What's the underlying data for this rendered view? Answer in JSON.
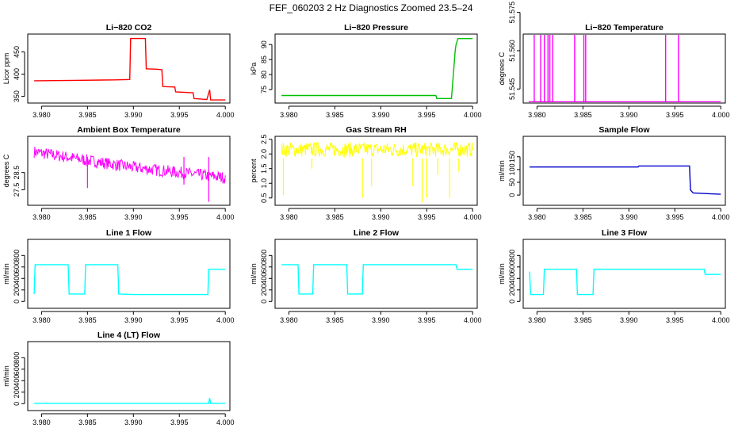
{
  "figure_title": "FEF_060203  2 Hz Diagnostics Zoomed 23.5–24",
  "chart_data": [
    {
      "type": "line",
      "title": "Li−820 CO2",
      "ylabel": "Licor ppm",
      "color": "#ff0000",
      "xlim": [
        3.9785,
        4.0005
      ],
      "ylim": [
        335,
        490
      ],
      "xticks": [
        "3.980",
        "3.985",
        "3.990",
        "3.995",
        "4.000"
      ],
      "yticks": [
        "350",
        "400",
        "450"
      ],
      "series": [
        {
          "points": [
            [
              3.9792,
              385
            ],
            [
              3.9835,
              386
            ],
            [
              3.988,
              387
            ],
            [
              3.9896,
              388
            ],
            [
              3.9897,
              480
            ],
            [
              3.9913,
              480
            ],
            [
              3.9914,
              412
            ],
            [
              3.9925,
              411
            ],
            [
              3.9931,
              410
            ],
            [
              3.9932,
              372
            ],
            [
              3.9945,
              371
            ],
            [
              3.9946,
              360
            ],
            [
              3.9965,
              358
            ],
            [
              3.9966,
              345
            ],
            [
              3.998,
              343
            ],
            [
              3.9983,
              365
            ],
            [
              3.9984,
              342
            ],
            [
              4.0,
              342
            ]
          ]
        }
      ]
    },
    {
      "type": "line",
      "title": "Li−820 Pressure",
      "ylabel": "kPa",
      "color": "#00c000",
      "xlim": [
        3.9785,
        4.0005
      ],
      "ylim": [
        70.5,
        93.5
      ],
      "xticks": [
        "3.980",
        "3.985",
        "3.990",
        "3.995",
        "4.000"
      ],
      "yticks": [
        "75",
        "80",
        "85",
        "90"
      ],
      "series": [
        {
          "points": [
            [
              3.9792,
              73
            ],
            [
              3.996,
              73
            ],
            [
              3.9961,
              72
            ],
            [
              3.9977,
              72
            ],
            [
              3.9979,
              80
            ],
            [
              3.9981,
              88
            ],
            [
              3.9982,
              90
            ],
            [
              3.9984,
              92
            ],
            [
              4.0,
              92
            ]
          ]
        }
      ]
    },
    {
      "type": "line",
      "title": "Li−820 Temperature",
      "ylabel": "degrees C",
      "color": "#ff00ff",
      "xlim": [
        3.9785,
        4.0005
      ],
      "ylim": [
        51.5395,
        51.5665
      ],
      "xticks": [
        "3.980",
        "3.985",
        "3.990",
        "3.995",
        "4.000"
      ],
      "yticks": [
        "51.545",
        "51.560",
        "51.575"
      ],
      "spike_top": 51.5665,
      "baseline": 51.54,
      "spikes_x": [
        3.9797,
        3.9804,
        3.9808,
        3.9812,
        3.9814,
        3.9817,
        3.9841,
        3.9851,
        3.9853,
        3.994,
        3.9954
      ]
    },
    {
      "type": "line",
      "title": "Ambient Box Temperature",
      "ylabel": "degrees C",
      "color": "#ff00ff",
      "xlim": [
        3.9785,
        4.0005
      ],
      "ylim": [
        26.6,
        30.6
      ],
      "xticks": [
        "3.980",
        "3.985",
        "3.990",
        "3.995",
        "4.000"
      ],
      "yticks": [
        "27.5",
        "28.5"
      ],
      "trend": [
        [
          3.9792,
          29.7
        ],
        [
          3.985,
          29.2
        ],
        [
          3.99,
          28.8
        ],
        [
          3.995,
          28.5
        ],
        [
          4.0,
          28.2
        ]
      ],
      "noise": 0.35,
      "outliers": [
        [
          3.985,
          27.6
        ],
        [
          3.9982,
          26.8
        ],
        [
          3.9955,
          27.8
        ]
      ]
    },
    {
      "type": "line",
      "title": "Gas Stream RH",
      "ylabel": "percent",
      "color": "#ffff00",
      "xlim": [
        3.9785,
        4.0005
      ],
      "ylim": [
        0.25,
        2.6
      ],
      "xticks": [
        "3.980",
        "3.985",
        "3.990",
        "3.995",
        "4.000"
      ],
      "yticks": [
        "0.5",
        "1.0",
        "1.5",
        "2.0",
        "2.5"
      ],
      "trend": [
        [
          3.9792,
          2.15
        ],
        [
          4.0,
          2.15
        ]
      ],
      "noise": 0.25,
      "outliers": [
        [
          3.9794,
          0.6
        ],
        [
          3.9825,
          1.5
        ],
        [
          3.988,
          0.5
        ],
        [
          3.989,
          0.9
        ],
        [
          3.9935,
          0.9
        ],
        [
          3.9945,
          0.35
        ],
        [
          3.995,
          0.5
        ],
        [
          3.9962,
          1.3
        ],
        [
          3.9975,
          0.5
        ],
        [
          3.9985,
          1.4
        ]
      ]
    },
    {
      "type": "line",
      "title": "Sample Flow",
      "ylabel": "ml/min",
      "color": "#0000cc",
      "xlim": [
        3.9785,
        4.0005
      ],
      "ylim": [
        -40,
        230
      ],
      "xticks": [
        "3.980",
        "3.985",
        "3.990",
        "3.995",
        "4.000"
      ],
      "yticks": [
        "0",
        "50",
        "100",
        "150"
      ],
      "series": [
        {
          "points": [
            [
              3.9792,
              110
            ],
            [
              3.991,
              110
            ],
            [
              3.9911,
              114
            ],
            [
              3.9966,
              114
            ],
            [
              3.9967,
              20
            ],
            [
              3.997,
              8
            ],
            [
              4.0,
              3
            ]
          ]
        }
      ]
    },
    {
      "type": "line",
      "title": "Line 1 Flow",
      "ylabel": "ml/min",
      "color": "#00ffff",
      "xlim": [
        3.9785,
        4.0005
      ],
      "ylim": [
        -120,
        1080
      ],
      "xticks": [
        "3.980",
        "3.985",
        "3.990",
        "3.995",
        "4.000"
      ],
      "yticks": [
        "0",
        "200",
        "400",
        "600",
        "800"
      ],
      "series": [
        {
          "points": [
            [
              3.9792,
              130
            ],
            [
              3.9793,
              640
            ],
            [
              3.9829,
              640
            ],
            [
              3.983,
              130
            ],
            [
              3.9847,
              130
            ],
            [
              3.9848,
              640
            ],
            [
              3.9883,
              640
            ],
            [
              3.9884,
              130
            ],
            [
              3.99,
              120
            ],
            [
              3.9981,
              120
            ],
            [
              3.9982,
              560
            ],
            [
              4.0,
              560
            ]
          ]
        }
      ]
    },
    {
      "type": "line",
      "title": "Line 2 Flow",
      "ylabel": "ml/min",
      "color": "#00ffff",
      "xlim": [
        3.9785,
        4.0005
      ],
      "ylim": [
        -120,
        1080
      ],
      "xticks": [
        "3.980",
        "3.985",
        "3.990",
        "3.995",
        "4.000"
      ],
      "yticks": [
        "0",
        "200",
        "400",
        "600",
        "800"
      ],
      "series": [
        {
          "points": [
            [
              3.9792,
              640
            ],
            [
              3.981,
              640
            ],
            [
              3.9811,
              130
            ],
            [
              3.9826,
              130
            ],
            [
              3.9827,
              640
            ],
            [
              3.9863,
              640
            ],
            [
              3.9864,
              130
            ],
            [
              3.988,
              130
            ],
            [
              3.9881,
              640
            ],
            [
              3.9982,
              640
            ],
            [
              3.9983,
              560
            ],
            [
              4.0,
              560
            ]
          ]
        }
      ]
    },
    {
      "type": "line",
      "title": "Line 3 Flow",
      "ylabel": "ml/min",
      "color": "#00ffff",
      "xlim": [
        3.9785,
        4.0005
      ],
      "ylim": [
        -120,
        1080
      ],
      "xticks": [
        "3.980",
        "3.985",
        "3.990",
        "3.995",
        "4.000"
      ],
      "yticks": [
        "0",
        "200",
        "400",
        "600",
        "800"
      ],
      "series": [
        {
          "points": [
            [
              3.9792,
              520
            ],
            [
              3.9793,
              120
            ],
            [
              3.9807,
              120
            ],
            [
              3.9808,
              560
            ],
            [
              3.9843,
              560
            ],
            [
              3.9844,
              120
            ],
            [
              3.9861,
              120
            ],
            [
              3.9862,
              560
            ],
            [
              3.9982,
              560
            ],
            [
              3.9983,
              470
            ],
            [
              4.0,
              470
            ]
          ]
        }
      ]
    },
    {
      "type": "line",
      "title": "Line 4 (LT) Flow",
      "ylabel": "ml/min",
      "color": "#00ffff",
      "xlim": [
        3.9785,
        4.0005
      ],
      "ylim": [
        -120,
        1080
      ],
      "xticks": [
        "3.980",
        "3.985",
        "3.990",
        "3.995",
        "4.000"
      ],
      "yticks": [
        "0",
        "200",
        "400",
        "600",
        "800"
      ],
      "series": [
        {
          "points": [
            [
              3.9792,
              5
            ],
            [
              3.9982,
              5
            ],
            [
              3.9983,
              100
            ],
            [
              3.9984,
              5
            ],
            [
              4.0,
              5
            ]
          ]
        }
      ]
    }
  ]
}
